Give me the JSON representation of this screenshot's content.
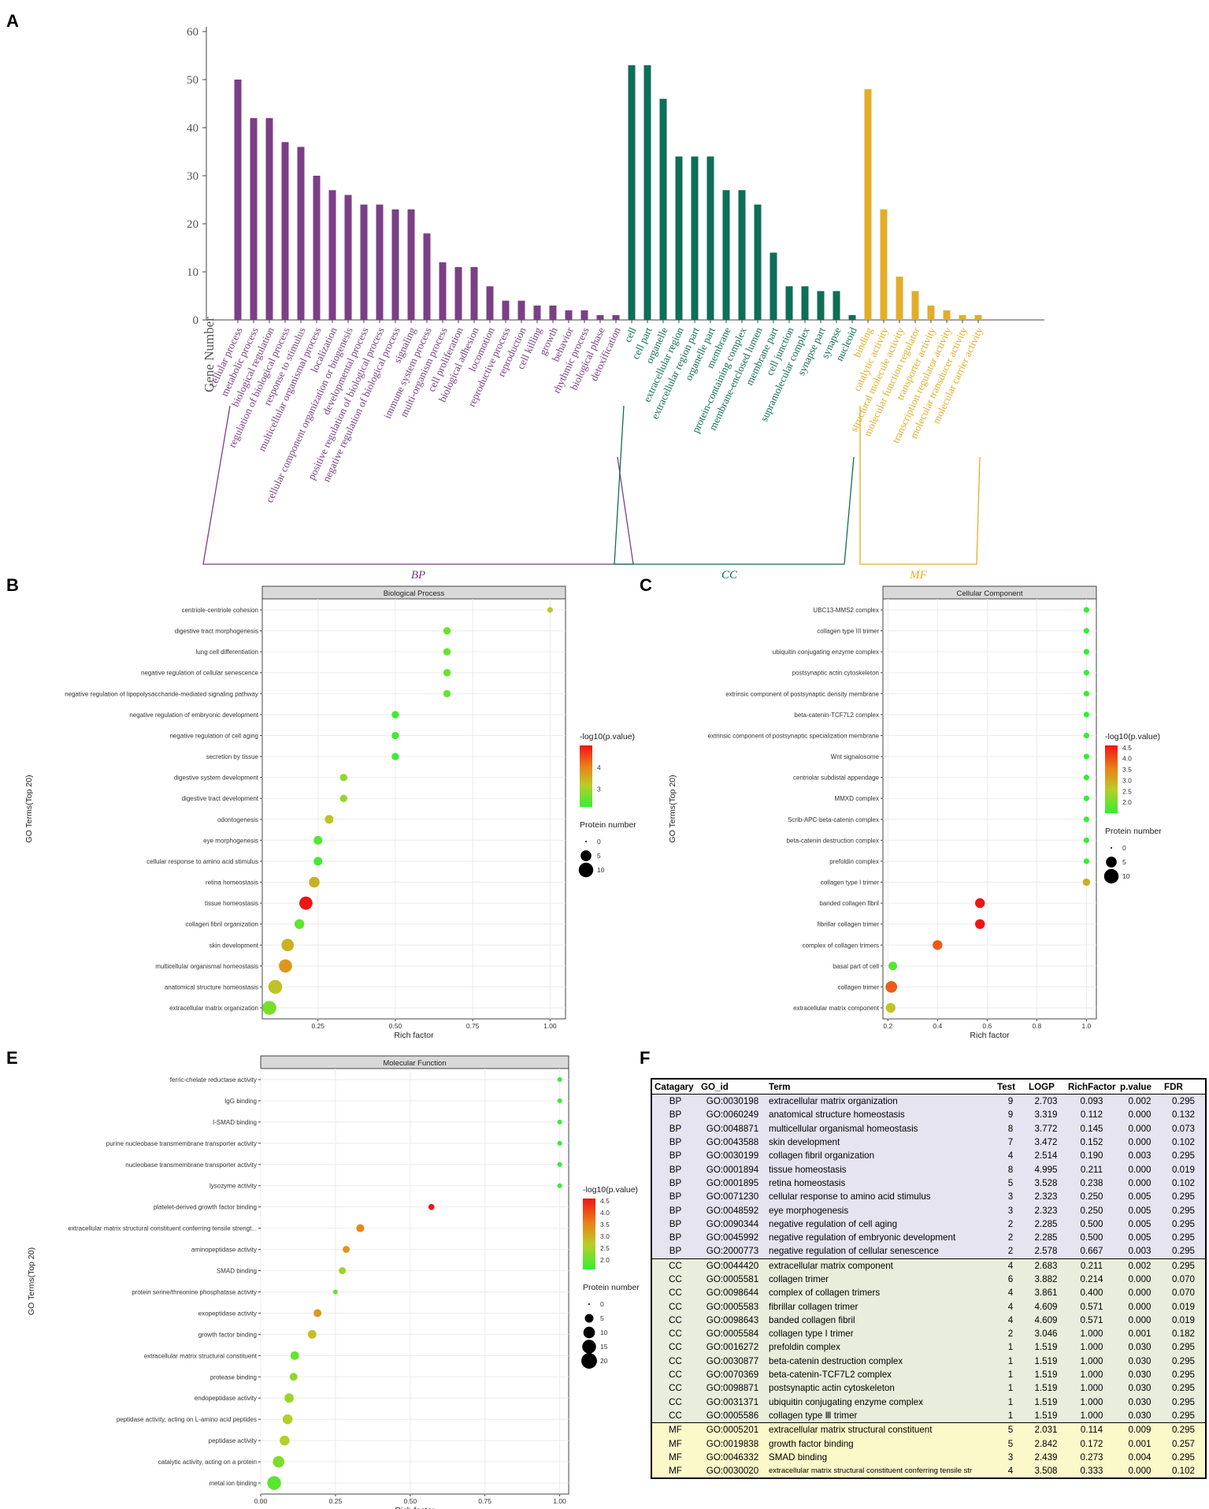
{
  "panels": {
    "A": "A",
    "B": "B",
    "C": "C",
    "E": "E",
    "F": "F"
  },
  "panelA": {
    "chart_data": {
      "type": "bar",
      "ylabel": "Gene Number",
      "ylim": [
        0,
        60
      ],
      "yticks": [
        0,
        10,
        20,
        30,
        40,
        50,
        60
      ],
      "groups": [
        {
          "name": "BP",
          "color": "#7b3f86",
          "categories": [
            "cellular process",
            "metabolic process",
            "biological regulation",
            "regulation of biological process",
            "response to stimulus",
            "multicellular organismal process",
            "localization",
            "cellular component organization or biogenesis",
            "developmental process",
            "positive regulation of biological process",
            "negative regulation of biological process",
            "signaling",
            "immune system process",
            "multi-organism process",
            "cell proliferation",
            "biological adhesion",
            "locomotion",
            "reproductive process",
            "reproduction",
            "cell killing",
            "growth",
            "behavior",
            "rhythmic process",
            "biological phase",
            "detoxification"
          ],
          "values": [
            50,
            42,
            42,
            37,
            36,
            30,
            27,
            26,
            24,
            24,
            23,
            23,
            18,
            12,
            11,
            11,
            7,
            4,
            4,
            3,
            3,
            2,
            2,
            1,
            1
          ]
        },
        {
          "name": "CC",
          "color": "#0e6e56",
          "categories": [
            "cell",
            "cell part",
            "organelle",
            "extracellular region",
            "extracellular region part",
            "organelle part",
            "membrane",
            "protein-containing complex",
            "membrane-enclosed lumen",
            "membrane part",
            "cell junction",
            "supramolecular complex",
            "synapse part",
            "synapse",
            "nucleoid"
          ],
          "values": [
            53,
            53,
            46,
            34,
            34,
            34,
            27,
            27,
            24,
            14,
            7,
            7,
            6,
            6,
            1
          ]
        },
        {
          "name": "MF",
          "color": "#e3ad2b",
          "categories": [
            "binding",
            "catalytic activity",
            "structural molecule activity",
            "molecular function regulator",
            "transporter activity",
            "transcription regulator activity",
            "molecular transducer activity",
            "molecular carrier activity"
          ],
          "values": [
            48,
            23,
            9,
            6,
            3,
            2,
            1,
            1
          ]
        }
      ]
    }
  },
  "panelB": {
    "chart_data": {
      "type": "scatter",
      "title": "Biological Process",
      "xlabel": "Rich factor",
      "ylabel": "GO Terms(Top 20)",
      "xlim": [
        0.07,
        1.05
      ],
      "xticks": [
        0.25,
        0.5,
        0.75,
        1.0
      ],
      "xtick_labels": [
        "0.25",
        "0.50",
        "0.75",
        "1.00"
      ],
      "color_title": "-log10(p.value)",
      "color_ticks": [
        "4",
        "3"
      ],
      "color_range": [
        2.2,
        5.0
      ],
      "size_title": "Protein number",
      "size_ticks": [
        "0",
        "5",
        "10"
      ],
      "terms": [
        "centriole-centriole cohesion",
        "digestive tract morphogenesis",
        "lung cell differentiation",
        "negative regulation of cellular senescence",
        "negative regulation of lipopolysaccharide-mediated signaling pathway",
        "negative regulation of embryonic development",
        "negative regulation of cell aging",
        "secretion by tissue",
        "digestive system development",
        "digestive tract development",
        "odontogenesis",
        "eye morphogenesis",
        "cellular response to amino acid stimulus",
        "retina homeostasis",
        "tissue homeostasis",
        "collagen fibril organization",
        "skin development",
        "multicellular organismal homeostasis",
        "anatomical structure homeostasis",
        "extracellular matrix organization"
      ],
      "x": [
        1.0,
        0.667,
        0.667,
        0.667,
        0.667,
        0.5,
        0.5,
        0.5,
        0.333,
        0.333,
        0.286,
        0.25,
        0.25,
        0.238,
        0.211,
        0.19,
        0.152,
        0.145,
        0.112,
        0.093
      ],
      "logp": [
        3.2,
        2.6,
        2.6,
        2.6,
        2.6,
        2.3,
        2.3,
        2.3,
        2.9,
        2.9,
        3.3,
        2.4,
        2.3,
        3.5,
        5.0,
        2.5,
        3.5,
        3.8,
        3.3,
        2.7
      ],
      "count": [
        1,
        2,
        2,
        2,
        2,
        2,
        2,
        2,
        2,
        2,
        3,
        3,
        3,
        5,
        8,
        4,
        7,
        8,
        9,
        9
      ]
    }
  },
  "panelC": {
    "chart_data": {
      "type": "scatter",
      "title": "Cellular Component",
      "xlabel": "Rich factor",
      "ylabel": "GO Terms(Top 20)",
      "xlim": [
        0.18,
        1.04
      ],
      "xticks": [
        0.2,
        0.4,
        0.6,
        0.8,
        1.0
      ],
      "xtick_labels": [
        "0.2",
        "0.4",
        "0.6",
        "0.8",
        "1.0"
      ],
      "color_title": "-log10(p.value)",
      "color_ticks": [
        "4.5",
        "4.0",
        "3.5",
        "3.0",
        "2.5",
        "2.0"
      ],
      "color_range": [
        1.5,
        4.6
      ],
      "size_title": "Protein number",
      "size_ticks": [
        "0",
        "5",
        "10"
      ],
      "terms": [
        "UBC13-MMS2 complex",
        "collagen type III trimer",
        "ubiquitin conjugating enzyme complex",
        "postsynaptic actin cytoskeleton",
        "extrinsic component of postsynaptic density membrane",
        "beta-catenin-TCF7L2 complex",
        "extrinsic component of postsynaptic specialization membrane",
        "Wnt signalosome",
        "centriolar subdistal appendage",
        "MMXD complex",
        "Scrib-APC-beta-catenin complex",
        "beta-catenin destruction complex",
        "prefoldin complex",
        "collagen type I trimer",
        "banded collagen fibril",
        "fibrillar collagen trimer",
        "complex of collagen trimers",
        "basal part of cell",
        "collagen trimer",
        "extracellular matrix component"
      ],
      "x": [
        1,
        1,
        1,
        1,
        1,
        1,
        1,
        1,
        1,
        1,
        1,
        1,
        1,
        1,
        0.571,
        0.571,
        0.4,
        0.22,
        0.214,
        0.211
      ],
      "logp": [
        1.5,
        1.5,
        1.5,
        1.5,
        1.5,
        1.5,
        1.5,
        1.5,
        1.5,
        1.5,
        1.5,
        1.5,
        1.5,
        3.0,
        4.6,
        4.6,
        3.9,
        1.8,
        3.9,
        2.7
      ],
      "count": [
        1,
        1,
        1,
        1,
        1,
        1,
        1,
        1,
        1,
        1,
        1,
        1,
        1,
        2,
        4,
        4,
        4,
        3,
        6,
        4
      ]
    }
  },
  "panelE": {
    "chart_data": {
      "type": "scatter",
      "title": "Molecular Function",
      "xlabel": "Rich factor",
      "ylabel": "GO Terms(Top 20)",
      "xlim": [
        0.0,
        1.03
      ],
      "xticks": [
        0.0,
        0.25,
        0.5,
        0.75,
        1.0
      ],
      "xtick_labels": [
        "0.00",
        "0.25",
        "0.50",
        "0.75",
        "1.00"
      ],
      "color_title": "-log10(p.value)",
      "color_ticks": [
        "4.5",
        "4.0",
        "3.5",
        "3.0",
        "2.5",
        "2.0"
      ],
      "color_range": [
        1.6,
        4.6
      ],
      "size_title": "Protein number",
      "size_ticks": [
        "0",
        "5",
        "10",
        "15",
        "20"
      ],
      "terms": [
        "ferric-chelate reductase activity",
        "IgG binding",
        "I-SMAD binding",
        "purine nucleobase transmembrane transporter activity",
        "nucleobase transmembrane transporter activity",
        "lysozyme activity",
        "platelet-derived growth factor binding",
        "extracellular matrix structural constituent conferring tensile strengt...",
        "aminopeptidase activity",
        "SMAD binding",
        "protein serine/threonine phosphatase activity",
        "exopeptidase activity",
        "growth factor binding",
        "extracellular matrix structural constituent",
        "protease binding",
        "endopeptidase activity",
        "peptidase activity, acting on L-amino acid peptides",
        "peptidase activity",
        "catalytic activity, acting on a protein",
        "metal ion binding"
      ],
      "x": [
        1,
        1,
        1,
        1,
        1,
        1,
        0.571,
        0.333,
        0.286,
        0.273,
        0.25,
        0.19,
        0.172,
        0.114,
        0.11,
        0.095,
        0.09,
        0.08,
        0.06,
        0.045
      ],
      "logp": [
        1.6,
        1.6,
        1.6,
        1.6,
        1.6,
        1.6,
        4.6,
        3.5,
        3.3,
        2.4,
        1.9,
        3.3,
        2.8,
        2.0,
        2.3,
        2.4,
        2.6,
        2.6,
        2.2,
        1.9
      ],
      "count": [
        1,
        1,
        1,
        1,
        1,
        1,
        2,
        4,
        3,
        3,
        1,
        4,
        5,
        5,
        4,
        6,
        7,
        7,
        10,
        15
      ]
    }
  },
  "panelF": {
    "columns": [
      "Catagary",
      "GO_id",
      "Term",
      "Test",
      "LOGP",
      "RichFactor",
      "p.value",
      "FDR"
    ],
    "rows": [
      [
        "BP",
        "GO:0030198",
        "extracellular matrix organization",
        "9",
        "2.703",
        "0.093",
        "0.002",
        "0.295"
      ],
      [
        "BP",
        "GO:0060249",
        "anatomical structure homeostasis",
        "9",
        "3.319",
        "0.112",
        "0.000",
        "0.132"
      ],
      [
        "BP",
        "GO:0048871",
        "multicellular organismal homeostasis",
        "8",
        "3.772",
        "0.145",
        "0.000",
        "0.073"
      ],
      [
        "BP",
        "GO:0043588",
        "skin development",
        "7",
        "3.472",
        "0.152",
        "0.000",
        "0.102"
      ],
      [
        "BP",
        "GO:0030199",
        "collagen fibril organization",
        "4",
        "2.514",
        "0.190",
        "0.003",
        "0.295"
      ],
      [
        "BP",
        "GO:0001894",
        "tissue homeostasis",
        "8",
        "4.995",
        "0.211",
        "0.000",
        "0.019"
      ],
      [
        "BP",
        "GO:0001895",
        "retina homeostasis",
        "5",
        "3.528",
        "0.238",
        "0.000",
        "0.102"
      ],
      [
        "BP",
        "GO:0071230",
        "cellular response to amino acid stimulus",
        "3",
        "2.323",
        "0.250",
        "0.005",
        "0.295"
      ],
      [
        "BP",
        "GO:0048592",
        "eye morphogenesis",
        "3",
        "2.323",
        "0.250",
        "0.005",
        "0.295"
      ],
      [
        "BP",
        "GO:0090344",
        "negative regulation of cell aging",
        "2",
        "2.285",
        "0.500",
        "0.005",
        "0.295"
      ],
      [
        "BP",
        "GO:0045992",
        "negative regulation of embryonic development",
        "2",
        "2.285",
        "0.500",
        "0.005",
        "0.295"
      ],
      [
        "BP",
        "GO:2000773",
        "negative regulation of cellular senescence",
        "2",
        "2.578",
        "0.667",
        "0.003",
        "0.295"
      ],
      [
        "CC",
        "GO:0044420",
        "extracellular matrix component",
        "4",
        "2.683",
        "0.211",
        "0.002",
        "0.295"
      ],
      [
        "CC",
        "GO:0005581",
        "collagen trimer",
        "6",
        "3.882",
        "0.214",
        "0.000",
        "0.070"
      ],
      [
        "CC",
        "GO:0098644",
        "complex of collagen trimers",
        "4",
        "3.861",
        "0.400",
        "0.000",
        "0.070"
      ],
      [
        "CC",
        "GO:0005583",
        "fibrillar collagen trimer",
        "4",
        "4.609",
        "0.571",
        "0.000",
        "0.019"
      ],
      [
        "CC",
        "GO:0098643",
        "banded collagen fibril",
        "4",
        "4.609",
        "0.571",
        "0.000",
        "0.019"
      ],
      [
        "CC",
        "GO:0005584",
        "collagen type I trimer",
        "2",
        "3.046",
        "1.000",
        "0.001",
        "0.182"
      ],
      [
        "CC",
        "GO:0016272",
        "prefoldin complex",
        "1",
        "1.519",
        "1.000",
        "0.030",
        "0.295"
      ],
      [
        "CC",
        "GO:0030877",
        "beta-catenin destruction complex",
        "1",
        "1.519",
        "1.000",
        "0.030",
        "0.295"
      ],
      [
        "CC",
        "GO:0070369",
        "beta-catenin-TCF7L2 complex",
        "1",
        "1.519",
        "1.000",
        "0.030",
        "0.295"
      ],
      [
        "CC",
        "GO:0098871",
        "postsynaptic actin cytoskeleton",
        "1",
        "1.519",
        "1.000",
        "0.030",
        "0.295"
      ],
      [
        "CC",
        "GO:0031371",
        "ubiquitin conjugating enzyme complex",
        "1",
        "1.519",
        "1.000",
        "0.030",
        "0.295"
      ],
      [
        "CC",
        "GO:0005586",
        "collagen type Ⅲ trimer",
        "1",
        "1.519",
        "1.000",
        "0.030",
        "0.295"
      ],
      [
        "MF",
        "GO:0005201",
        "extracellular matrix structural constituent",
        "5",
        "2.031",
        "0.114",
        "0.009",
        "0.295"
      ],
      [
        "MF",
        "GO:0019838",
        "growth factor binding",
        "5",
        "2.842",
        "0.172",
        "0.001",
        "0.257"
      ],
      [
        "MF",
        "GO:0046332",
        "SMAD binding",
        "3",
        "2.439",
        "0.273",
        "0.004",
        "0.295"
      ],
      [
        "MF",
        "GO:0030020",
        "extracellular matrix structural constituent conferring tensile str",
        "4",
        "3.508",
        "0.333",
        "0.000",
        "0.102"
      ]
    ]
  }
}
